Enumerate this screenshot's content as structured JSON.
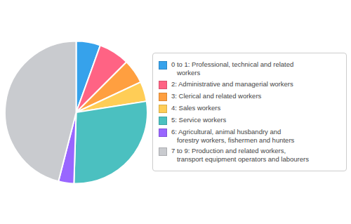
{
  "chart_data": {
    "type": "pie",
    "categories": [
      "0 to 1: Professional, technical and related\n   workers",
      "2: Administrative and managerial workers",
      "3: Clerical and related workers",
      "4: Sales workers",
      "5: Service workers",
      "6: Agricultural, animal husbandry and\n   forestry workers, fishermen and hunters",
      "7 to 9: Production and related workers,\n   transport equipment operators and labourers"
    ],
    "values": [
      5.5,
      7.0,
      5.5,
      4.5,
      28.0,
      3.5,
      46.0
    ],
    "legend": "right"
  }
}
